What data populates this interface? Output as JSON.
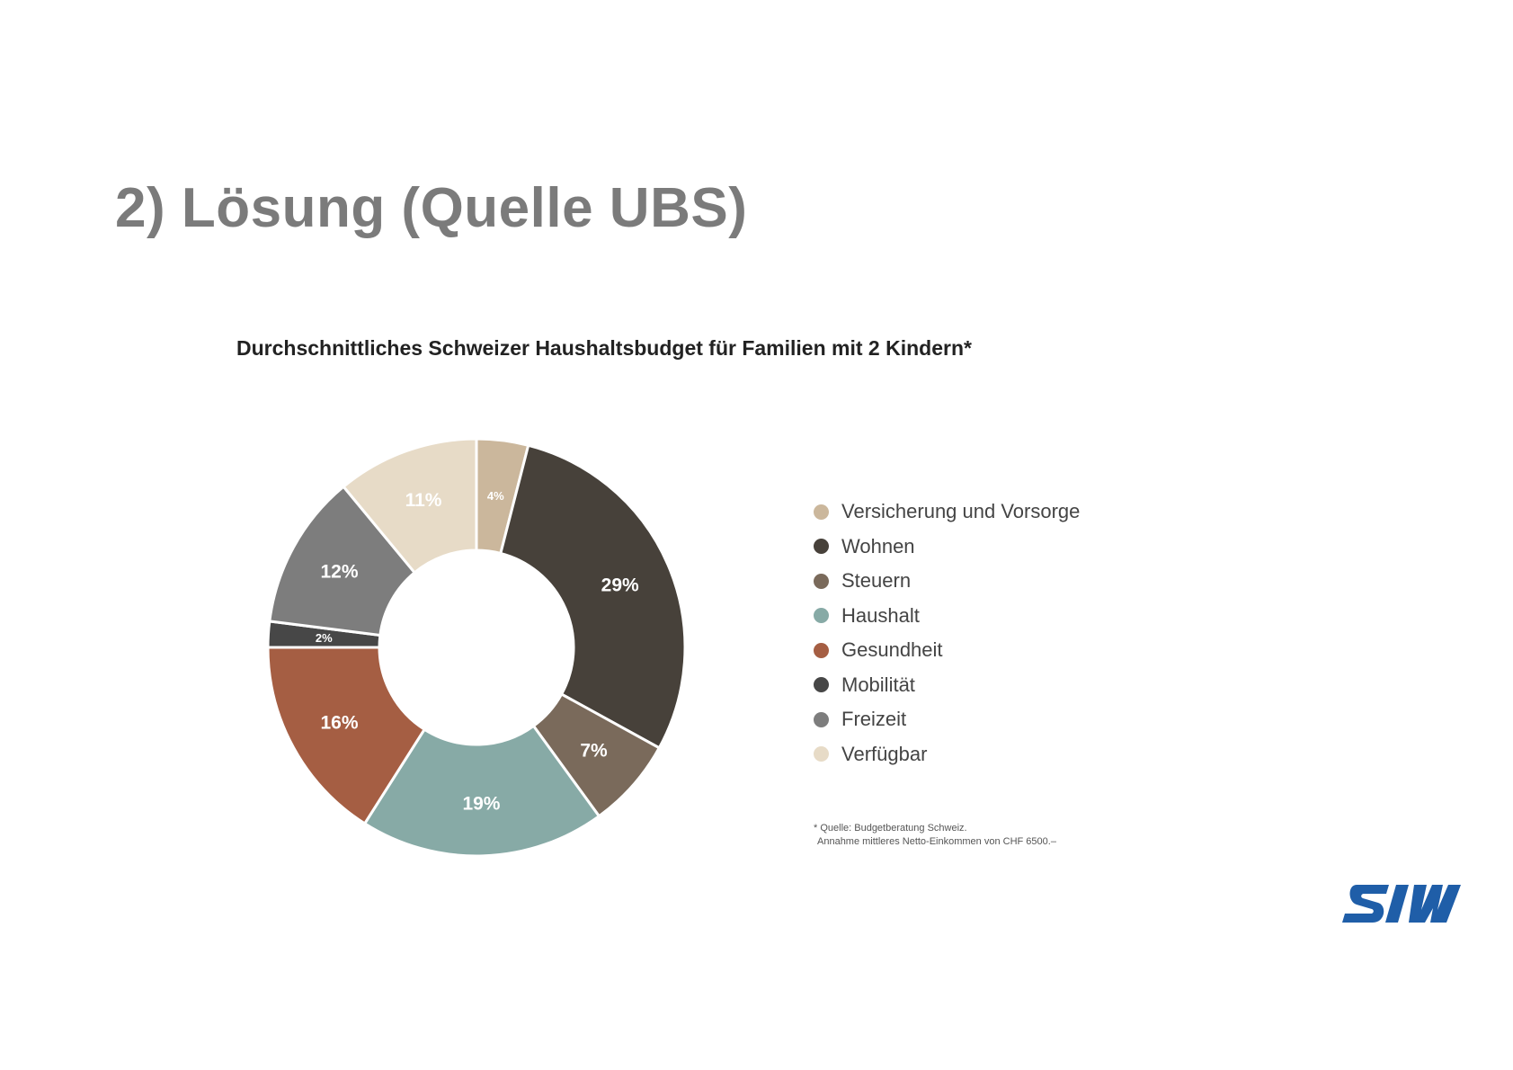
{
  "slide": {
    "title": "2) Lösung (Quelle UBS)"
  },
  "chart_data": {
    "type": "pie",
    "title": "Durchschnittliches Schweizer Haushaltsbudget für Familien mit 2 Kindern*",
    "legend_position": "right",
    "unit": "%",
    "series": [
      {
        "name": "Versicherung und Vorsorge",
        "value": 4,
        "label": "4%",
        "color": "#cbb79c"
      },
      {
        "name": "Wohnen",
        "value": 29,
        "label": "29%",
        "color": "#47413a"
      },
      {
        "name": "Steuern",
        "value": 7,
        "label": "7%",
        "color": "#7a6a5b"
      },
      {
        "name": "Haushalt",
        "value": 19,
        "label": "19%",
        "color": "#87aaa6"
      },
      {
        "name": "Gesundheit",
        "value": 16,
        "label": "16%",
        "color": "#a55e43"
      },
      {
        "name": "Mobilität",
        "value": 2,
        "label": "2%",
        "color": "#474747"
      },
      {
        "name": "Freizeit",
        "value": 12,
        "label": "12%",
        "color": "#7d7d7d"
      },
      {
        "name": "Verfügbar",
        "value": 11,
        "label": "11%",
        "color": "#e7dbc7"
      }
    ]
  },
  "footnote": {
    "line1": "* Quelle: Budgetberatung Schweiz.",
    "line2": "Annahme mittleres Netto-Einkommen von CHF 6500.–"
  },
  "logo": {
    "text": "SIW",
    "color": "#1f5ea8"
  }
}
